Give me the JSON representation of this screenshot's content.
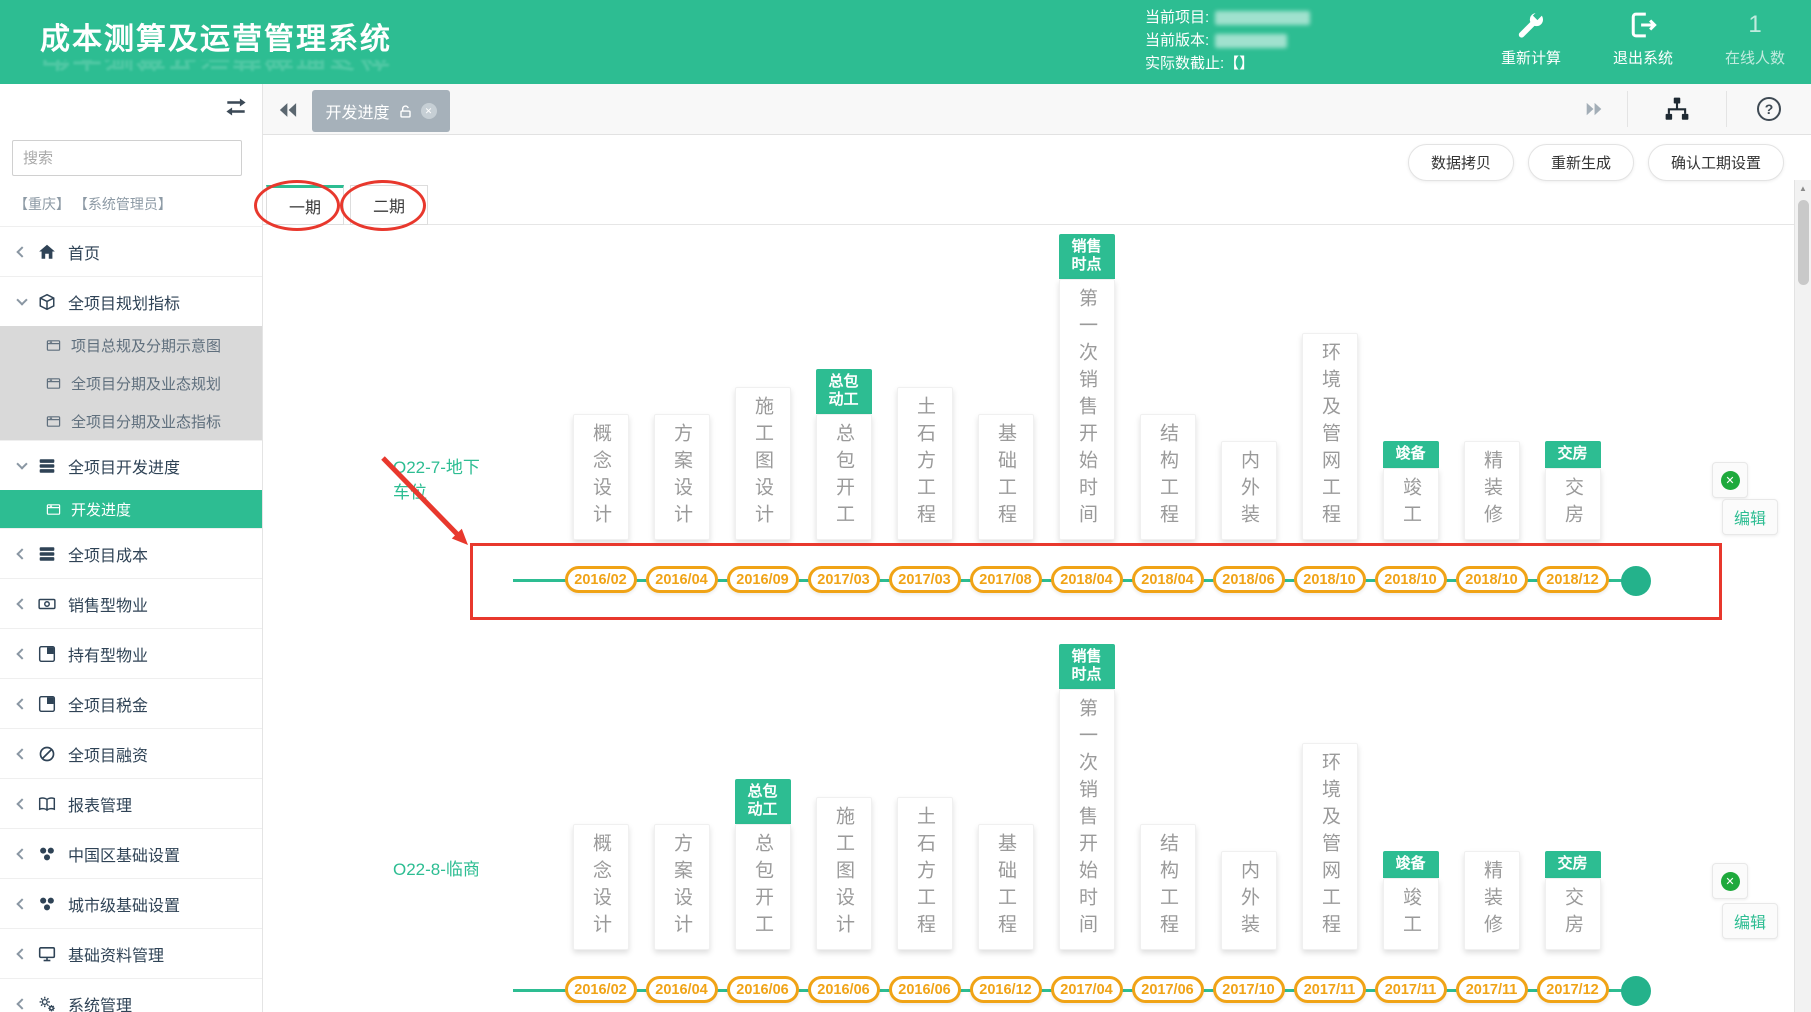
{
  "colors": {
    "accent": "#2dbd92",
    "annotation_red": "#e8382d",
    "pill_orange": "#f0a316",
    "tab_gray": "#a6b1ba",
    "close_dot_green": "#1ea93c"
  },
  "header": {
    "app_title": "成本测算及运营管理系统",
    "info": {
      "current_project_label": "当前项目:",
      "current_version_label": "当前版本:",
      "cutoff_label": "实际数截止:【】"
    },
    "actions": {
      "recalculate": "重新计算",
      "recalculate_icon": "wrench-icon",
      "exit": "退出系统",
      "exit_icon": "logout-icon",
      "online_count": "1",
      "online_label": "在线人数"
    }
  },
  "tabbar": {
    "document_tab": "开发进度",
    "tab_icons": [
      "unlock-icon",
      "close-icon"
    ],
    "nav_icons": [
      "double-left-icon",
      "double-right-icon",
      "sitemap-icon",
      "help-icon"
    ]
  },
  "sidebar": {
    "collapse_icon": "swap-icon",
    "search_placeholder": "搜索",
    "user_context": "【重庆】 【系统管理员】",
    "items": [
      {
        "icon": "home-icon",
        "label": "首页",
        "state": "collapsed"
      },
      {
        "icon": "cube-icon",
        "label": "全项目规划指标",
        "state": "expanded",
        "children": [
          {
            "icon": "window-icon",
            "label": "项目总规及分期示意图"
          },
          {
            "icon": "window-icon",
            "label": "全项目分期及业态规划"
          },
          {
            "icon": "window-icon",
            "label": "全项目分期及业态指标"
          }
        ]
      },
      {
        "icon": "rows-icon",
        "label": "全项目开发进度",
        "state": "expanded",
        "children": [
          {
            "icon": "window-icon",
            "label": "开发进度",
            "active": true
          }
        ]
      },
      {
        "icon": "rows-icon",
        "label": "全项目成本",
        "state": "collapsed"
      },
      {
        "icon": "banknote-icon",
        "label": "销售型物业",
        "state": "collapsed"
      },
      {
        "icon": "quadrant-icon",
        "label": "持有型物业",
        "state": "collapsed"
      },
      {
        "icon": "quadrant-icon",
        "label": "全项目税金",
        "state": "collapsed"
      },
      {
        "icon": "circle-slash-icon",
        "label": "全项目融资",
        "state": "collapsed"
      },
      {
        "icon": "book-icon",
        "label": "报表管理",
        "state": "collapsed"
      },
      {
        "icon": "cluster-icon",
        "label": "中国区基础设置",
        "state": "collapsed"
      },
      {
        "icon": "cluster-icon",
        "label": "城市级基础设置",
        "state": "collapsed"
      },
      {
        "icon": "monitor-icon",
        "label": "基础资料管理",
        "state": "collapsed"
      },
      {
        "icon": "gears-icon",
        "label": "系统管理",
        "state": "collapsed"
      }
    ]
  },
  "toolbar": {
    "data_copy": "数据拷贝",
    "regenerate": "重新生成",
    "confirm_schedule": "确认工期设置"
  },
  "phase_tabs": [
    {
      "label": "一期",
      "active": true
    },
    {
      "label": "二期",
      "active": false
    }
  ],
  "timeline": {
    "edit_label": "编辑",
    "rows": [
      {
        "project": "O22-7-地下车位",
        "milestones": [
          {
            "label": "概念设计"
          },
          {
            "label": "方案设计"
          },
          {
            "label": "施工图设计"
          },
          {
            "label": "总包开工",
            "badge": "总包动工"
          },
          {
            "label": "土石方工程"
          },
          {
            "label": "基础工程"
          },
          {
            "label": "第一次销售开始时间",
            "badge": "销售时点"
          },
          {
            "label": "结构工程"
          },
          {
            "label": "内外装"
          },
          {
            "label": "环境及管网工程"
          },
          {
            "label": "竣工",
            "badge": "竣备"
          },
          {
            "label": "精装修"
          },
          {
            "label": "交房",
            "badge": "交房"
          }
        ],
        "dates": [
          "2016/02",
          "2016/04",
          "2016/09",
          "2017/03",
          "2017/03",
          "2017/08",
          "2018/04",
          "2018/04",
          "2018/06",
          "2018/10",
          "2018/10",
          "2018/10",
          "2018/12"
        ]
      },
      {
        "project": "O22-8-临商",
        "milestones": [
          {
            "label": "概念设计"
          },
          {
            "label": "方案设计"
          },
          {
            "label": "总包开工",
            "badge": "总包动工"
          },
          {
            "label": "施工图设计"
          },
          {
            "label": "土石方工程"
          },
          {
            "label": "基础工程"
          },
          {
            "label": "第一次销售开始时间",
            "badge": "销售时点"
          },
          {
            "label": "结构工程"
          },
          {
            "label": "内外装"
          },
          {
            "label": "环境及管网工程"
          },
          {
            "label": "竣工",
            "badge": "竣备"
          },
          {
            "label": "精装修"
          },
          {
            "label": "交房",
            "badge": "交房"
          }
        ],
        "dates": [
          "2016/02",
          "2016/04",
          "2016/06",
          "2016/06",
          "2016/06",
          "2016/12",
          "2017/04",
          "2017/06",
          "2017/10",
          "2017/11",
          "2017/11",
          "2017/11",
          "2017/12"
        ]
      }
    ]
  }
}
